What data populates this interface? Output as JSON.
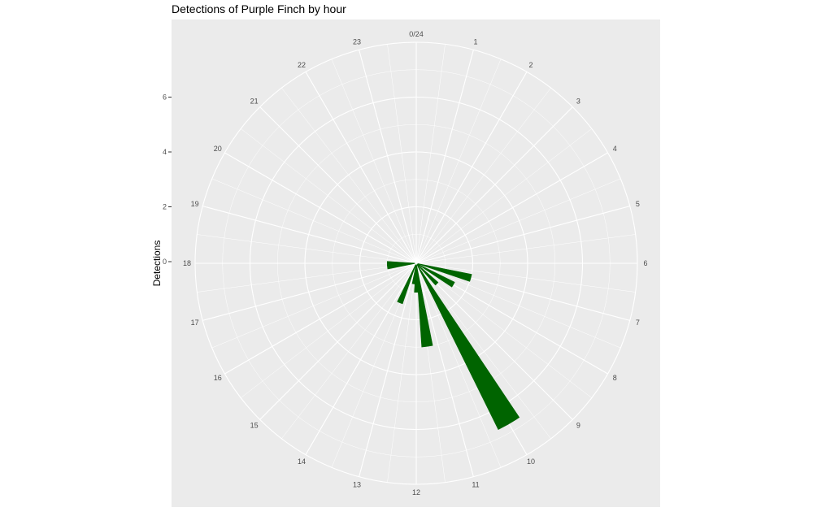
{
  "chart_data": {
    "type": "bar",
    "coord": "polar",
    "title": "Detections of Purple Finch by hour",
    "xlabel": "",
    "ylabel": "Detections",
    "hour_labels": [
      "0/24",
      "1",
      "2",
      "3",
      "4",
      "5",
      "6",
      "7",
      "8",
      "9",
      "10",
      "11",
      "12",
      "13",
      "14",
      "15",
      "16",
      "17",
      "18",
      "19",
      "20",
      "21",
      "22",
      "23"
    ],
    "y_ticks": [
      "0",
      "2",
      "4",
      "6"
    ],
    "y_tick_values": [
      0,
      2,
      4,
      6
    ],
    "ylim": [
      0,
      8
    ],
    "bin_width_hours": 0.5,
    "bars": [
      {
        "x": 7.0,
        "value": 2
      },
      {
        "x": 8.0,
        "value": 1.5
      },
      {
        "x": 9.0,
        "value": 1
      },
      {
        "x": 10.0,
        "value": 6.7
      },
      {
        "x": 11.5,
        "value": 3
      },
      {
        "x": 12.0,
        "value": 1
      },
      {
        "x": 12.5,
        "value": 0.7
      },
      {
        "x": 13.5,
        "value": 1.5
      },
      {
        "x": 17.5,
        "value": 1
      },
      {
        "x": 18.0,
        "value": 1
      }
    ],
    "colors": {
      "bar": "#006400",
      "panel": "#ebebeb",
      "grid": "#ffffff"
    }
  }
}
